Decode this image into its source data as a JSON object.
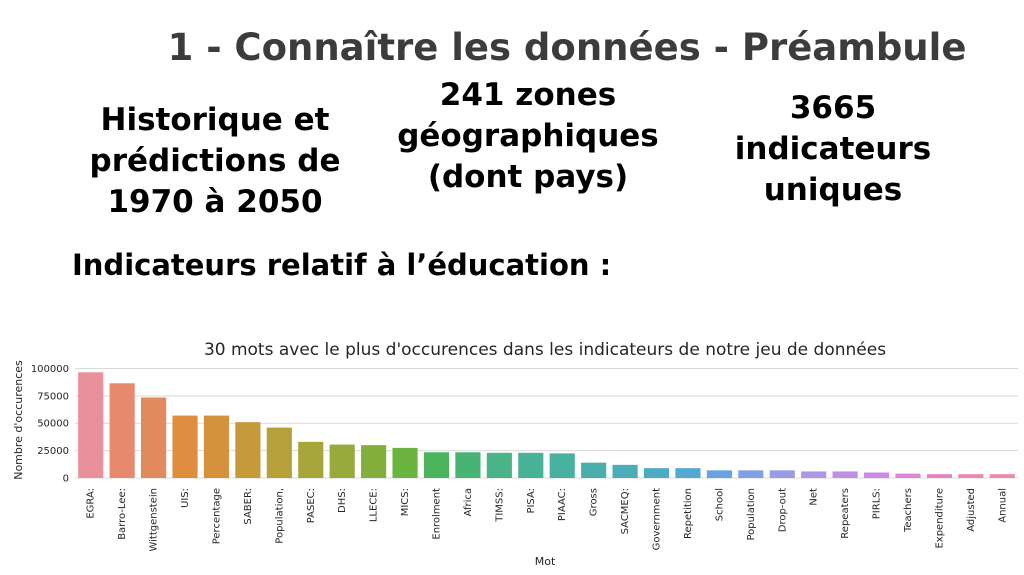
{
  "slide": {
    "title": "1 - Connaître les données - Préambule",
    "stats": [
      "Historique et\nprédictions de\n1970 à 2050",
      "241 zones\ngéographiques\n(dont pays)",
      "3665\nindicateurs\nuniques"
    ],
    "section_heading": "Indicateurs relatif à l’éducation :"
  },
  "chart_data": {
    "type": "bar",
    "title": "30 mots avec le plus d'occurences dans les indicateurs de notre jeu de données",
    "xlabel": "Mot",
    "ylabel": "Nombre d'occurences",
    "ylim": [
      0,
      105000
    ],
    "yticks": [
      0,
      25000,
      50000,
      75000,
      100000
    ],
    "grid": true,
    "categories": [
      "EGRA:",
      "Barro-Lee:",
      "Wittgenstein",
      "UIS:",
      "Percentage",
      "SABER:",
      "Population,",
      "PASEC:",
      "DHS:",
      "LLECE:",
      "MICS:",
      "Enrolment",
      "Africa",
      "TIMSS:",
      "PISA:",
      "PIAAC:",
      "Gross",
      "SACMEQ:",
      "Government",
      "Repetition",
      "School",
      "Population",
      "Drop-out",
      "Net",
      "Repeaters",
      "PIRLS:",
      "Teachers",
      "Expenditure",
      "Adjusted",
      "Annual"
    ],
    "values": [
      96500,
      86500,
      73500,
      57000,
      57000,
      51000,
      46000,
      33000,
      30500,
      30000,
      27500,
      23500,
      23500,
      23000,
      23000,
      22500,
      14000,
      12000,
      9000,
      9000,
      7000,
      7000,
      7000,
      6000,
      6000,
      5000,
      4000,
      3500,
      3500,
      3500
    ],
    "colors": [
      "#e8919c",
      "#e6896f",
      "#e2895e",
      "#df8d3f",
      "#d6913d",
      "#c69a3a",
      "#b6a03a",
      "#a6a63a",
      "#97aa3b",
      "#84ae3c",
      "#6ab43f",
      "#4cb45c",
      "#47b476",
      "#48b488",
      "#48b296",
      "#49b1a1",
      "#4aafac",
      "#4badb8",
      "#4dabc4",
      "#52a9d2",
      "#66a3e0",
      "#80a0e5",
      "#999ae8",
      "#ad95e8",
      "#bf8fe6",
      "#cf8ae1",
      "#dc86d6",
      "#e384c5",
      "#e788b5",
      "#e88ca7"
    ]
  }
}
